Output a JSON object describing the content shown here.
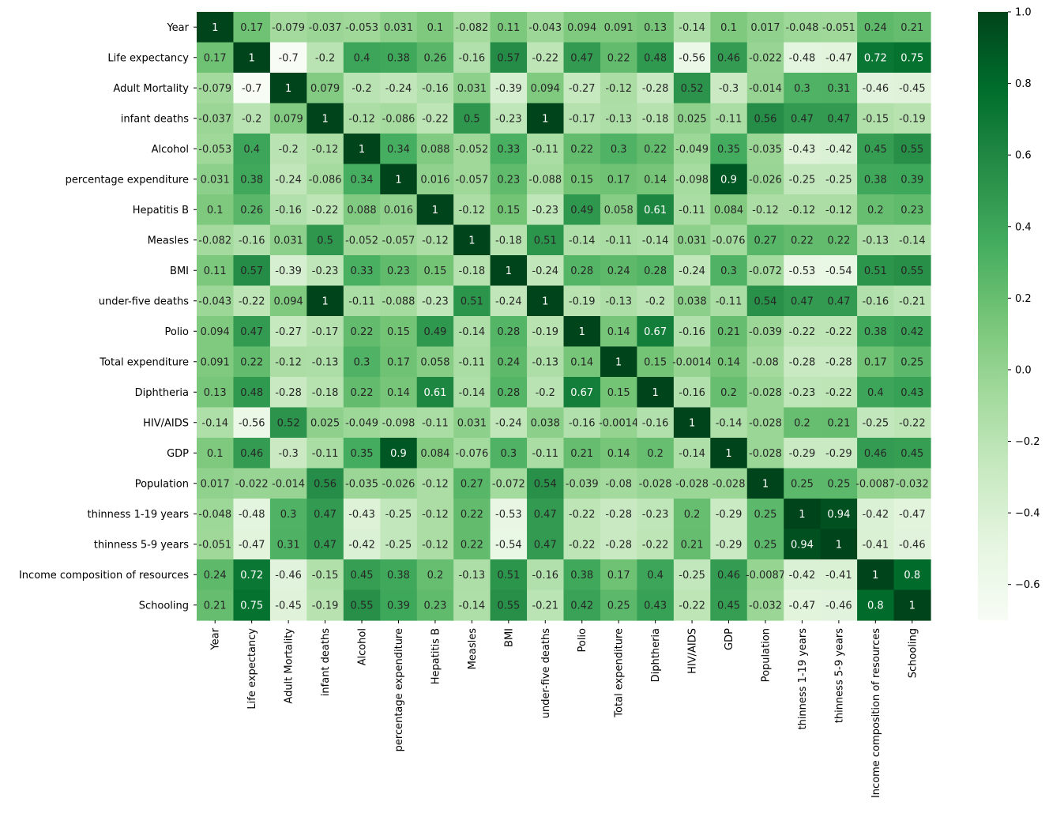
{
  "chart_data": {
    "type": "heatmap",
    "title": "",
    "xlabel": "",
    "ylabel": "",
    "labels": [
      "Year",
      "Life expectancy ",
      "Adult Mortality",
      "infant deaths",
      "Alcohol",
      "percentage expenditure",
      "Hepatitis B",
      "Measles ",
      "BMI ",
      "under-five deaths ",
      "Polio",
      "Total expenditure",
      "Diphtheria ",
      "HIV/AIDS",
      "GDP",
      "Population",
      "thinness  1-19 years",
      "thinness 5-9 years",
      "Income composition of resources",
      "Schooling"
    ],
    "matrix": [
      [
        "1",
        "0.17",
        "-0.079",
        "-0.037",
        "-0.053",
        "0.031",
        "0.1",
        "-0.082",
        "0.11",
        "-0.043",
        "0.094",
        "0.091",
        "0.13",
        "-0.14",
        "0.1",
        "0.017",
        "-0.048",
        "-0.051",
        "0.24",
        "0.21"
      ],
      [
        "0.17",
        "1",
        "-0.7",
        "-0.2",
        "0.4",
        "0.38",
        "0.26",
        "-0.16",
        "0.57",
        "-0.22",
        "0.47",
        "0.22",
        "0.48",
        "-0.56",
        "0.46",
        "-0.022",
        "-0.48",
        "-0.47",
        "0.72",
        "0.75"
      ],
      [
        "-0.079",
        "-0.7",
        "1",
        "0.079",
        "-0.2",
        "-0.24",
        "-0.16",
        "0.031",
        "-0.39",
        "0.094",
        "-0.27",
        "-0.12",
        "-0.28",
        "0.52",
        "-0.3",
        "-0.014",
        "0.3",
        "0.31",
        "-0.46",
        "-0.45"
      ],
      [
        "-0.037",
        "-0.2",
        "0.079",
        "1",
        "-0.12",
        "-0.086",
        "-0.22",
        "0.5",
        "-0.23",
        "1",
        "-0.17",
        "-0.13",
        "-0.18",
        "0.025",
        "-0.11",
        "0.56",
        "0.47",
        "0.47",
        "-0.15",
        "-0.19"
      ],
      [
        "-0.053",
        "0.4",
        "-0.2",
        "-0.12",
        "1",
        "0.34",
        "0.088",
        "-0.052",
        "0.33",
        "-0.11",
        "0.22",
        "0.3",
        "0.22",
        "-0.049",
        "0.35",
        "-0.035",
        "-0.43",
        "-0.42",
        "0.45",
        "0.55"
      ],
      [
        "0.031",
        "0.38",
        "-0.24",
        "-0.086",
        "0.34",
        "1",
        "0.016",
        "-0.057",
        "0.23",
        "-0.088",
        "0.15",
        "0.17",
        "0.14",
        "-0.098",
        "0.9",
        "-0.026",
        "-0.25",
        "-0.25",
        "0.38",
        "0.39"
      ],
      [
        "0.1",
        "0.26",
        "-0.16",
        "-0.22",
        "0.088",
        "0.016",
        "1",
        "-0.12",
        "0.15",
        "-0.23",
        "0.49",
        "0.058",
        "0.61",
        "-0.11",
        "0.084",
        "-0.12",
        "-0.12",
        "-0.12",
        "0.2",
        "0.23"
      ],
      [
        "-0.082",
        "-0.16",
        "0.031",
        "0.5",
        "-0.052",
        "-0.057",
        "-0.12",
        "1",
        "-0.18",
        "0.51",
        "-0.14",
        "-0.11",
        "-0.14",
        "0.031",
        "-0.076",
        "0.27",
        "0.22",
        "0.22",
        "-0.13",
        "-0.14"
      ],
      [
        "0.11",
        "0.57",
        "-0.39",
        "-0.23",
        "0.33",
        "0.23",
        "0.15",
        "-0.18",
        "1",
        "-0.24",
        "0.28",
        "0.24",
        "0.28",
        "-0.24",
        "0.3",
        "-0.072",
        "-0.53",
        "-0.54",
        "0.51",
        "0.55"
      ],
      [
        "-0.043",
        "-0.22",
        "0.094",
        "1",
        "-0.11",
        "-0.088",
        "-0.23",
        "0.51",
        "-0.24",
        "1",
        "-0.19",
        "-0.13",
        "-0.2",
        "0.038",
        "-0.11",
        "0.54",
        "0.47",
        "0.47",
        "-0.16",
        "-0.21"
      ],
      [
        "0.094",
        "0.47",
        "-0.27",
        "-0.17",
        "0.22",
        "0.15",
        "0.49",
        "-0.14",
        "0.28",
        "-0.19",
        "1",
        "0.14",
        "0.67",
        "-0.16",
        "0.21",
        "-0.039",
        "-0.22",
        "-0.22",
        "0.38",
        "0.42"
      ],
      [
        "0.091",
        "0.22",
        "-0.12",
        "-0.13",
        "0.3",
        "0.17",
        "0.058",
        "-0.11",
        "0.24",
        "-0.13",
        "0.14",
        "1",
        "0.15",
        "-0.0014",
        "0.14",
        "-0.08",
        "-0.28",
        "-0.28",
        "0.17",
        "0.25"
      ],
      [
        "0.13",
        "0.48",
        "-0.28",
        "-0.18",
        "0.22",
        "0.14",
        "0.61",
        "-0.14",
        "0.28",
        "-0.2",
        "0.67",
        "0.15",
        "1",
        "-0.16",
        "0.2",
        "-0.028",
        "-0.23",
        "-0.22",
        "0.4",
        "0.43"
      ],
      [
        "-0.14",
        "-0.56",
        "0.52",
        "0.025",
        "-0.049",
        "-0.098",
        "-0.11",
        "0.031",
        "-0.24",
        "0.038",
        "-0.16",
        "-0.0014",
        "-0.16",
        "1",
        "-0.14",
        "-0.028",
        "0.2",
        "0.21",
        "-0.25",
        "-0.22"
      ],
      [
        "0.1",
        "0.46",
        "-0.3",
        "-0.11",
        "0.35",
        "0.9",
        "0.084",
        "-0.076",
        "0.3",
        "-0.11",
        "0.21",
        "0.14",
        "0.2",
        "-0.14",
        "1",
        "-0.028",
        "-0.29",
        "-0.29",
        "0.46",
        "0.45"
      ],
      [
        "0.017",
        "-0.022",
        "-0.014",
        "0.56",
        "-0.035",
        "-0.026",
        "-0.12",
        "0.27",
        "-0.072",
        "0.54",
        "-0.039",
        "-0.08",
        "-0.028",
        "-0.028",
        "-0.028",
        "1",
        "0.25",
        "0.25",
        "-0.0087",
        "-0.032"
      ],
      [
        "-0.048",
        "-0.48",
        "0.3",
        "0.47",
        "-0.43",
        "-0.25",
        "-0.12",
        "0.22",
        "-0.53",
        "0.47",
        "-0.22",
        "-0.28",
        "-0.23",
        "0.2",
        "-0.29",
        "0.25",
        "1",
        "0.94",
        "-0.42",
        "-0.47"
      ],
      [
        "-0.051",
        "-0.47",
        "0.31",
        "0.47",
        "-0.42",
        "-0.25",
        "-0.12",
        "0.22",
        "-0.54",
        "0.47",
        "-0.22",
        "-0.28",
        "-0.22",
        "0.21",
        "-0.29",
        "0.25",
        "0.94",
        "1",
        "-0.41",
        "-0.46"
      ],
      [
        "0.24",
        "0.72",
        "-0.46",
        "-0.15",
        "0.45",
        "0.38",
        "0.2",
        "-0.13",
        "0.51",
        "-0.16",
        "0.38",
        "0.17",
        "0.4",
        "-0.25",
        "0.46",
        "-0.0087",
        "-0.42",
        "-0.41",
        "1",
        "0.8"
      ],
      [
        "0.21",
        "0.75",
        "-0.45",
        "-0.19",
        "0.55",
        "0.39",
        "0.23",
        "-0.14",
        "0.55",
        "-0.21",
        "0.42",
        "0.25",
        "0.43",
        "-0.22",
        "0.45",
        "-0.032",
        "-0.47",
        "-0.46",
        "0.8",
        "1"
      ]
    ],
    "colorbar": {
      "vmin": -0.7,
      "vmax": 1.0,
      "ticks": [
        "1.0",
        "0.8",
        "0.6",
        "0.4",
        "0.2",
        "0.0",
        "−0.2",
        "−0.4",
        "−0.6"
      ],
      "tick_values": [
        1.0,
        0.8,
        0.6,
        0.4,
        0.2,
        0.0,
        -0.2,
        -0.4,
        -0.6
      ]
    },
    "colormap": "Greens",
    "colormap_stops": [
      "#f7fcf5",
      "#e5f5e0",
      "#c7e9c0",
      "#a1d99b",
      "#74c476",
      "#41ab5d",
      "#238b45",
      "#006d2c",
      "#00441b"
    ],
    "annotations": true,
    "grid": false,
    "legend": "colorbar-right"
  }
}
